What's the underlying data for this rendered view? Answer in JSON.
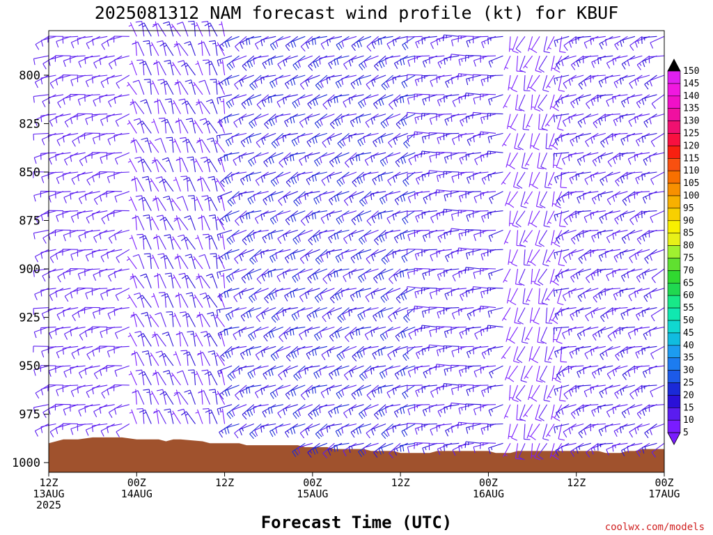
{
  "chart_data": {
    "type": "wind-barb-time-height",
    "title": "2025081312 NAM forecast wind profile (kt) for KBUF",
    "xlabel": "Forecast Time (UTC)",
    "ylabel": "",
    "credit": "coolwx.com/models",
    "y_axis": {
      "unit": "hPa",
      "inverted": true,
      "range": [
        777,
        1005
      ],
      "ticks": [
        800,
        825,
        850,
        875,
        900,
        925,
        950,
        975,
        1000
      ]
    },
    "x_axis": {
      "range_hours": [
        0,
        84
      ],
      "ticks": [
        {
          "hour": 0,
          "lines": [
            "12Z",
            "13AUG",
            "2025"
          ]
        },
        {
          "hour": 12,
          "lines": [
            "00Z",
            "14AUG"
          ]
        },
        {
          "hour": 24,
          "lines": [
            "12Z"
          ]
        },
        {
          "hour": 36,
          "lines": [
            "00Z",
            "15AUG"
          ]
        },
        {
          "hour": 48,
          "lines": [
            "12Z"
          ]
        },
        {
          "hour": 60,
          "lines": [
            "00Z",
            "16AUG"
          ]
        },
        {
          "hour": 72,
          "lines": [
            "12Z"
          ]
        },
        {
          "hour": 84,
          "lines": [
            "00Z",
            "17AUG"
          ]
        }
      ]
    },
    "colorbar": {
      "unit": "kt",
      "levels": [
        5,
        10,
        15,
        20,
        25,
        30,
        35,
        40,
        45,
        50,
        55,
        60,
        65,
        70,
        75,
        80,
        85,
        90,
        95,
        100,
        105,
        110,
        115,
        120,
        125,
        130,
        135,
        140,
        145,
        150
      ],
      "colors": [
        "#7a1cff",
        "#5a1cf0",
        "#2a10d8",
        "#1a2ad8",
        "#1c5ae8",
        "#1c7cf0",
        "#1c9cf0",
        "#10bce0",
        "#10d8d0",
        "#10e8b0",
        "#18e888",
        "#20d850",
        "#30d830",
        "#60e030",
        "#a0f030",
        "#e8f018",
        "#f8f000",
        "#f8d000",
        "#f8b000",
        "#f89000",
        "#f87000",
        "#f85010",
        "#f82010",
        "#f81040",
        "#f01070",
        "#f010a0",
        "#f010c8",
        "#f018e0",
        "#e020f0",
        "#000000"
      ]
    },
    "terrain_color": "#a0522d",
    "surface_pressure": [
      [
        0,
        990
      ],
      [
        1,
        989
      ],
      [
        2,
        988
      ],
      [
        4,
        988
      ],
      [
        6,
        987
      ],
      [
        10,
        987
      ],
      [
        12,
        988
      ],
      [
        15,
        988
      ],
      [
        16,
        989
      ],
      [
        17,
        988
      ],
      [
        18,
        988
      ],
      [
        21,
        989
      ],
      [
        22,
        990
      ],
      [
        26,
        990
      ],
      [
        27,
        991
      ],
      [
        34,
        991
      ],
      [
        35,
        992
      ],
      [
        38,
        992
      ],
      [
        39,
        993
      ],
      [
        43,
        993
      ],
      [
        44,
        994
      ],
      [
        47,
        994
      ],
      [
        48,
        995
      ],
      [
        52,
        995
      ],
      [
        53,
        994
      ],
      [
        60,
        994
      ],
      [
        61,
        995
      ],
      [
        63,
        995
      ],
      [
        64,
        994
      ],
      [
        75,
        994
      ],
      [
        76,
        995
      ],
      [
        78,
        995
      ],
      [
        79,
        994
      ],
      [
        80,
        994
      ],
      [
        81,
        993
      ],
      [
        84,
        993
      ]
    ],
    "barb_grid": {
      "times_hours": [
        0,
        1,
        2,
        3,
        4,
        5,
        6,
        7,
        8,
        9,
        10,
        11,
        12,
        13,
        14,
        15,
        16,
        17,
        18,
        19,
        20,
        21,
        22,
        23,
        24,
        25,
        26,
        27,
        28,
        29,
        30,
        31,
        32,
        33,
        34,
        35,
        36,
        37,
        38,
        39,
        40,
        41,
        42,
        43,
        44,
        45,
        46,
        47,
        48,
        49,
        50,
        51,
        52,
        53,
        54,
        55,
        56,
        57,
        58,
        59,
        60,
        61,
        62,
        63,
        64,
        65,
        66,
        67,
        68,
        69,
        70,
        71,
        72,
        73,
        74,
        75,
        76,
        77,
        78,
        79,
        80,
        81,
        82,
        83,
        84
      ],
      "levels_hpa": [
        780,
        790,
        800,
        810,
        820,
        830,
        840,
        850,
        860,
        870,
        880,
        890,
        900,
        910,
        920,
        930,
        940,
        950,
        960,
        970,
        980,
        990,
        1000
      ]
    },
    "wind_regimes": [
      {
        "hours": [
          0,
          11
        ],
        "dir_deg": 255,
        "speed_kt": [
          10,
          12
        ]
      },
      {
        "hours": [
          11,
          24
        ],
        "dir_deg": 340,
        "speed_kt": [
          5,
          15
        ]
      },
      {
        "hours": [
          24,
          50
        ],
        "dir_deg": 245,
        "speed_kt": [
          10,
          20
        ]
      },
      {
        "hours": [
          50,
          62
        ],
        "dir_deg": 260,
        "speed_kt": [
          10,
          15
        ]
      },
      {
        "hours": [
          62,
          70
        ],
        "dir_deg": 200,
        "speed_kt": [
          5,
          10
        ]
      },
      {
        "hours": [
          70,
          84
        ],
        "dir_deg": 250,
        "speed_kt": [
          10,
          15
        ]
      }
    ]
  }
}
